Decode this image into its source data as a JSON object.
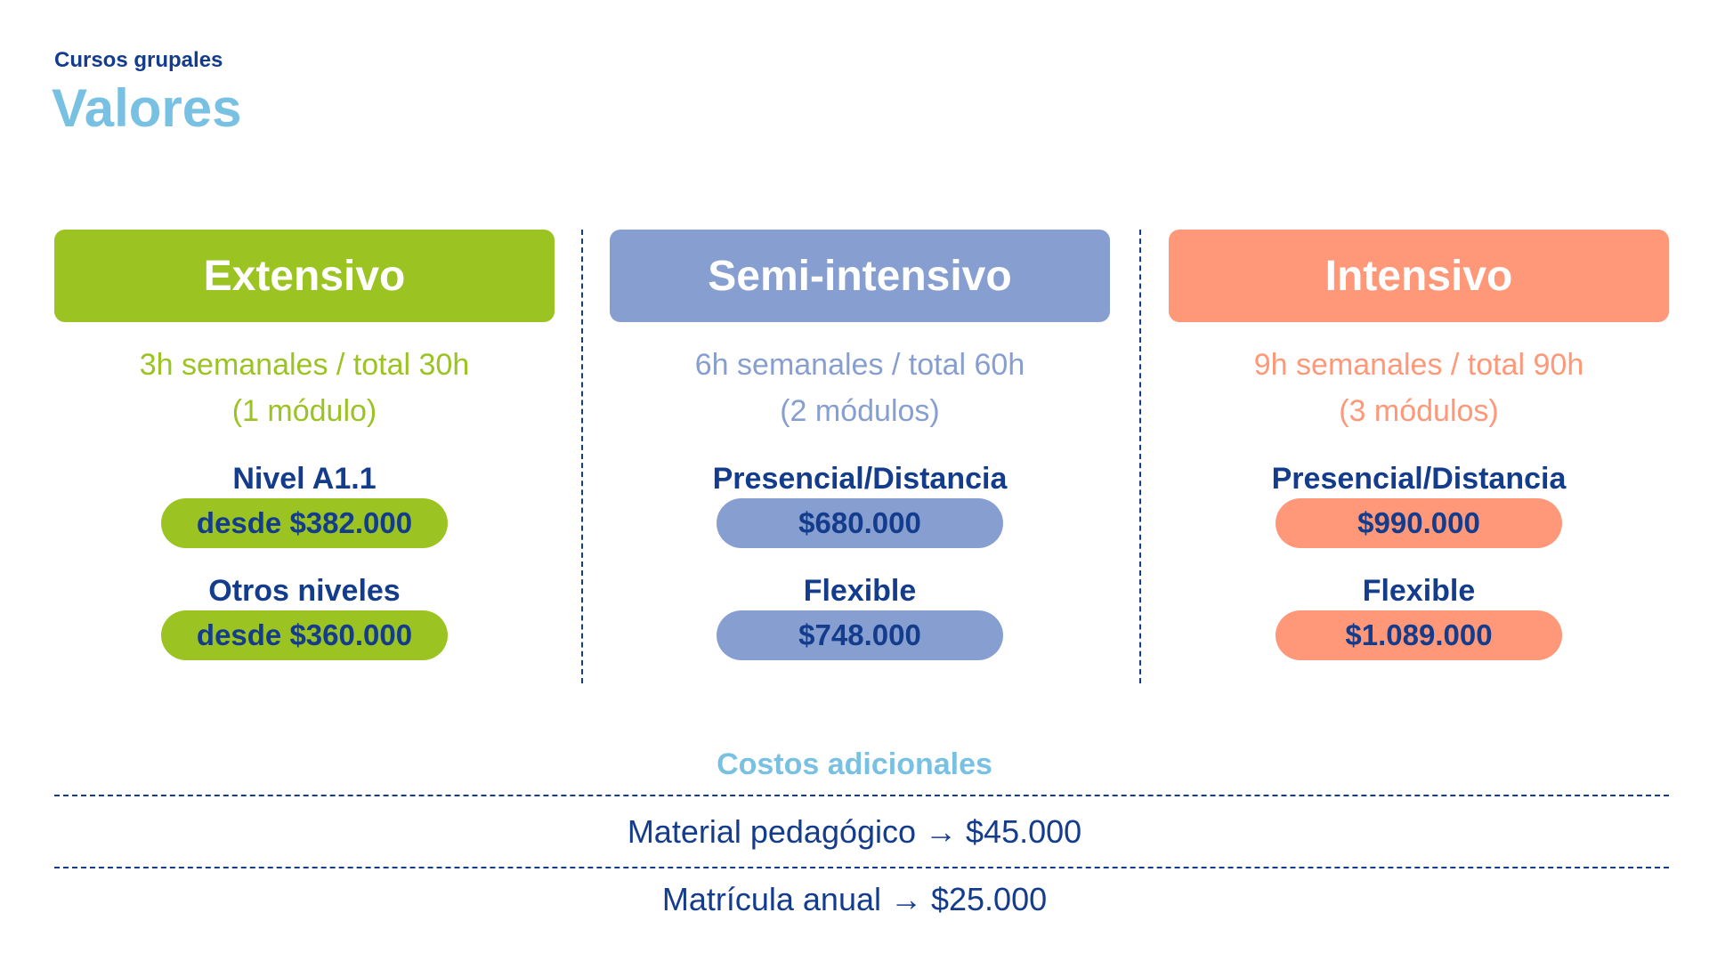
{
  "header": {
    "eyebrow": "Cursos grupales",
    "title": "Valores"
  },
  "colors": {
    "green": "#9bc322",
    "blue": "#879fd0",
    "salmon": "#ff9878",
    "navy": "#143c8c",
    "light_blue": "#79c1e3"
  },
  "plans": [
    {
      "name": "Extensivo",
      "hours_line1": "3h semanales / total 30h",
      "hours_line2": "(1 módulo)",
      "option1_label": "Nivel A1.1",
      "option1_price": "desde $382.000",
      "option2_label": "Otros niveles",
      "option2_price": "desde $360.000"
    },
    {
      "name": "Semi-intensivo",
      "hours_line1": "6h semanales / total 60h",
      "hours_line2": "(2 módulos)",
      "option1_label": "Presencial/Distancia",
      "option1_price": "$680.000",
      "option2_label": "Flexible",
      "option2_price": "$748.000"
    },
    {
      "name": "Intensivo",
      "hours_line1": "9h semanales / total 90h",
      "hours_line2": "(3 módulos)",
      "option1_label": "Presencial/Distancia",
      "option1_price": "$990.000",
      "option2_label": "Flexible",
      "option2_price": "$1.089.000"
    }
  ],
  "extras": {
    "title": "Costos adicionales",
    "items": [
      "Material pedagógico → $45.000",
      "Matrícula anual → $25.000"
    ]
  }
}
